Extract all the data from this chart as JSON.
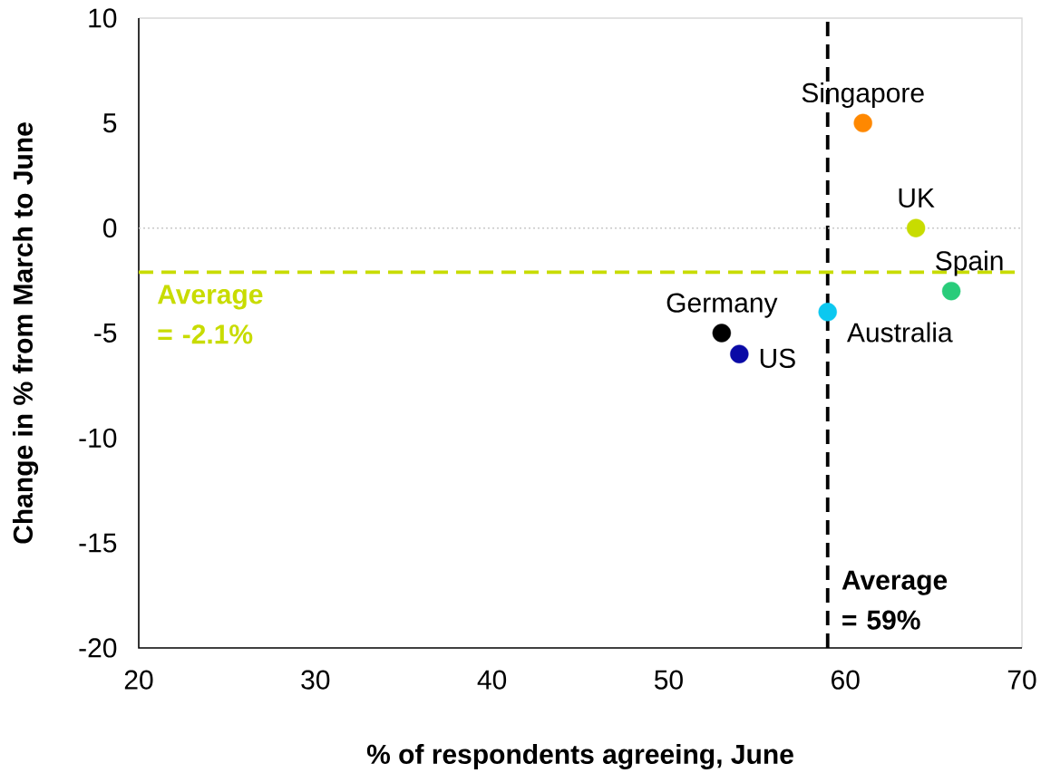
{
  "chart_data": {
    "type": "scatter",
    "xlabel": "% of respondents agreeing, June",
    "ylabel": "Change in % from March to June",
    "xlim": [
      20,
      70
    ],
    "ylim": [
      -20,
      10
    ],
    "xticks": [
      20,
      30,
      40,
      50,
      60,
      70
    ],
    "yticks": [
      -20,
      -15,
      -10,
      -5,
      0,
      5,
      10
    ],
    "marker": "circle",
    "series": [
      {
        "name": "Singapore",
        "color": "#ff8800",
        "x": [
          61
        ],
        "values": [
          5
        ]
      },
      {
        "name": "UK",
        "color": "#c8dc00",
        "x": [
          64
        ],
        "values": [
          0
        ]
      },
      {
        "name": "Spain",
        "color": "#29cc7a",
        "x": [
          66
        ],
        "values": [
          -3
        ]
      },
      {
        "name": "Australia",
        "color": "#0cc8f0",
        "x": [
          59
        ],
        "values": [
          -4
        ]
      },
      {
        "name": "Germany",
        "color": "#000000",
        "x": [
          53
        ],
        "values": [
          -5
        ]
      },
      {
        "name": "US",
        "color": "#0a0aa6",
        "x": [
          54
        ],
        "values": [
          -6
        ]
      }
    ],
    "ref_lines": [
      {
        "axis": "x",
        "value": 59,
        "label": "Average = 59%",
        "color": "#000000",
        "line_style": "dashed"
      },
      {
        "axis": "y",
        "value": -2.1,
        "label": "Average = -2.1%",
        "color": "#c8dc00",
        "line_style": "dashed"
      },
      {
        "axis": "y",
        "value": 0,
        "label": null,
        "color": "#c8c8c8",
        "line_style": "dotted"
      }
    ]
  }
}
